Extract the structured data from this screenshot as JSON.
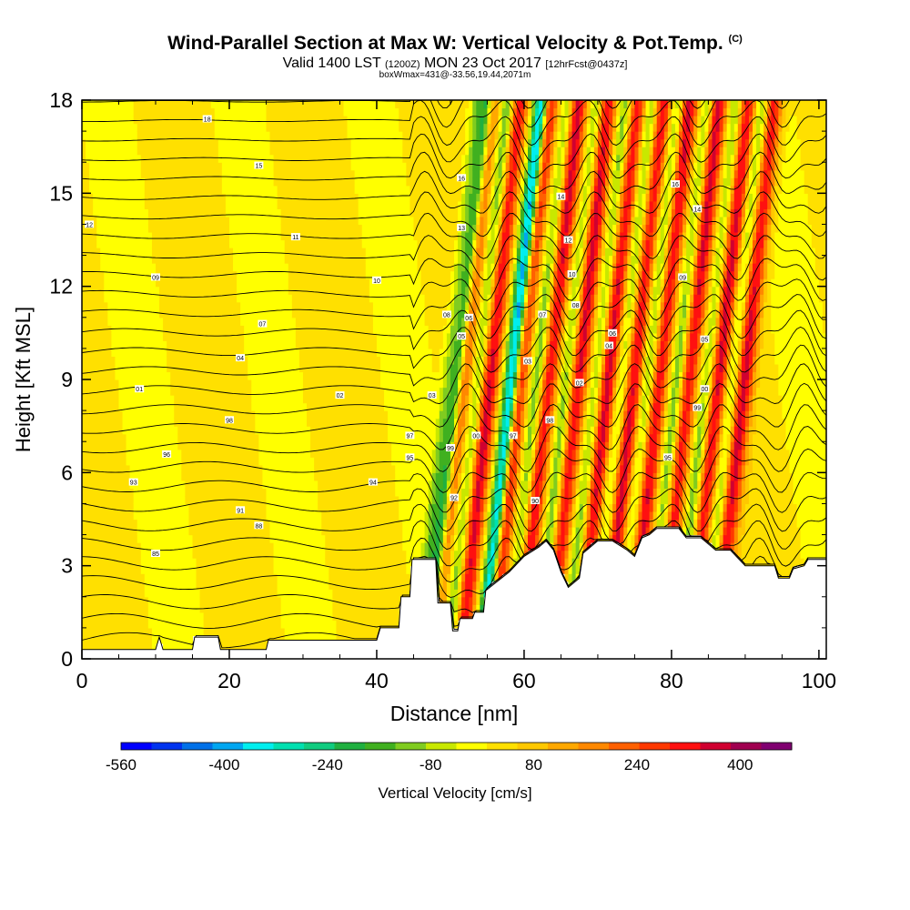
{
  "chart_data": {
    "type": "heatmap",
    "title": "Wind-Parallel Section at Max W: Vertical Velocity & Pot.Temp.",
    "title_mark": "(C)",
    "subtitle_main_a": "Valid 1400 LST",
    "subtitle_small_a": "(1200Z)",
    "subtitle_main_b": "MON 23 Oct 2017",
    "subtitle_small_b": "[12hrFcst@0437z]",
    "box_note": "boxWmax=431@-33.56,19.44,2071m",
    "xlabel": "Distance [nm]",
    "ylabel": "Height [Kft MSL]",
    "xlim": [
      0,
      101
    ],
    "ylim": [
      0,
      18
    ],
    "x_ticks": [
      0,
      20,
      40,
      60,
      80,
      100
    ],
    "y_ticks": [
      0,
      3,
      6,
      9,
      12,
      15,
      18
    ],
    "colorbar": {
      "label": "Vertical Velocity [cm/s]",
      "tick_labels": [
        "-560",
        "-400",
        "-240",
        "-80",
        "80",
        "240",
        "400"
      ],
      "tick_values": [
        -560,
        -400,
        -240,
        -80,
        80,
        240,
        400
      ],
      "range": [
        -560,
        480
      ],
      "colors": [
        "#0000ff",
        "#0033ee",
        "#0070e8",
        "#00a6f0",
        "#00eeee",
        "#00e0b0",
        "#10cc80",
        "#20b040",
        "#40b020",
        "#80cc20",
        "#c8e800",
        "#ffff00",
        "#ffe000",
        "#ffc800",
        "#ffa800",
        "#ff8800",
        "#ff6000",
        "#ff3800",
        "#ff1010",
        "#d00030",
        "#a00050",
        "#800070"
      ]
    },
    "updraft_bands_nm": [
      50,
      54,
      58,
      62,
      66,
      70,
      73.5,
      77,
      81,
      85,
      88.5
    ],
    "downdraft_bands_nm": [
      51,
      58.5
    ],
    "terrain_profile_kft": [
      [
        0,
        0.3
      ],
      [
        10,
        0.3
      ],
      [
        10.5,
        0.7
      ],
      [
        11,
        0.3
      ],
      [
        15,
        0.3
      ],
      [
        15.3,
        0.7
      ],
      [
        18.5,
        0.7
      ],
      [
        18.8,
        0.3
      ],
      [
        25,
        0.3
      ],
      [
        25.3,
        0.6
      ],
      [
        40,
        0.6
      ],
      [
        40.5,
        1.0
      ],
      [
        43,
        1.0
      ],
      [
        43.3,
        2.0
      ],
      [
        44.5,
        2.0
      ],
      [
        44.8,
        3.2
      ],
      [
        48,
        3.2
      ],
      [
        48.3,
        1.8
      ],
      [
        50,
        1.8
      ],
      [
        50.3,
        0.9
      ],
      [
        51,
        0.9
      ],
      [
        51.3,
        1.3
      ],
      [
        53,
        1.3
      ],
      [
        53.3,
        1.5
      ],
      [
        54.5,
        1.5
      ],
      [
        54.8,
        2.2
      ],
      [
        58,
        2.8
      ],
      [
        60,
        3.3
      ],
      [
        62,
        3.6
      ],
      [
        63,
        3.8
      ],
      [
        64,
        3.5
      ],
      [
        65,
        2.8
      ],
      [
        66,
        2.3
      ],
      [
        67.5,
        2.6
      ],
      [
        68,
        3.4
      ],
      [
        70,
        3.8
      ],
      [
        72,
        3.8
      ],
      [
        74,
        3.5
      ],
      [
        75,
        3.3
      ],
      [
        76,
        3.9
      ],
      [
        77,
        4.0
      ],
      [
        78,
        4.2
      ],
      [
        81,
        4.2
      ],
      [
        82,
        3.9
      ],
      [
        84,
        3.9
      ],
      [
        86,
        3.5
      ],
      [
        88,
        3.5
      ],
      [
        90,
        3.0
      ],
      [
        94,
        3.0
      ],
      [
        94.5,
        2.6
      ],
      [
        96,
        2.6
      ],
      [
        96.5,
        2.9
      ],
      [
        98,
        3.0
      ],
      [
        98.5,
        3.2
      ],
      [
        101,
        3.2
      ]
    ],
    "contour_labels": [
      {
        "x": 17,
        "y": 17.4,
        "text": "18"
      },
      {
        "x": 24,
        "y": 15.9,
        "text": "15"
      },
      {
        "x": 1,
        "y": 14.0,
        "text": "12"
      },
      {
        "x": 29,
        "y": 13.6,
        "text": "11"
      },
      {
        "x": 10,
        "y": 12.3,
        "text": "09"
      },
      {
        "x": 24.5,
        "y": 10.8,
        "text": "07"
      },
      {
        "x": 21.5,
        "y": 9.7,
        "text": "04"
      },
      {
        "x": 7.8,
        "y": 8.7,
        "text": "01"
      },
      {
        "x": 20,
        "y": 7.7,
        "text": "98"
      },
      {
        "x": 11.5,
        "y": 6.6,
        "text": "96"
      },
      {
        "x": 7,
        "y": 5.7,
        "text": "93"
      },
      {
        "x": 21.5,
        "y": 4.8,
        "text": "91"
      },
      {
        "x": 24,
        "y": 4.3,
        "text": "88"
      },
      {
        "x": 10,
        "y": 3.4,
        "text": "85"
      },
      {
        "x": 35,
        "y": 8.5,
        "text": "02"
      },
      {
        "x": 40,
        "y": 12.2,
        "text": "10"
      },
      {
        "x": 44.5,
        "y": 7.2,
        "text": "97"
      },
      {
        "x": 44.5,
        "y": 6.5,
        "text": "95"
      },
      {
        "x": 39.5,
        "y": 5.7,
        "text": "94"
      },
      {
        "x": 47.5,
        "y": 8.5,
        "text": "03"
      },
      {
        "x": 49.5,
        "y": 11.1,
        "text": "08"
      },
      {
        "x": 50,
        "y": 6.8,
        "text": "99"
      },
      {
        "x": 50.5,
        "y": 5.2,
        "text": "92"
      },
      {
        "x": 51.5,
        "y": 15.5,
        "text": "16"
      },
      {
        "x": 51.5,
        "y": 13.9,
        "text": "13"
      },
      {
        "x": 52.5,
        "y": 11.0,
        "text": "06"
      },
      {
        "x": 51.5,
        "y": 10.4,
        "text": "05"
      },
      {
        "x": 53.5,
        "y": 7.2,
        "text": "00"
      },
      {
        "x": 58.5,
        "y": 7.2,
        "text": "97"
      },
      {
        "x": 60.5,
        "y": 9.6,
        "text": "03"
      },
      {
        "x": 61.5,
        "y": 5.1,
        "text": "90"
      },
      {
        "x": 62.5,
        "y": 11.1,
        "text": "07"
      },
      {
        "x": 63.5,
        "y": 7.7,
        "text": "98"
      },
      {
        "x": 65,
        "y": 14.9,
        "text": "14"
      },
      {
        "x": 66,
        "y": 13.5,
        "text": "12"
      },
      {
        "x": 66.5,
        "y": 12.4,
        "text": "10"
      },
      {
        "x": 67,
        "y": 11.4,
        "text": "08"
      },
      {
        "x": 67.5,
        "y": 8.9,
        "text": "02"
      },
      {
        "x": 71.5,
        "y": 10.1,
        "text": "04"
      },
      {
        "x": 72,
        "y": 10.5,
        "text": "06"
      },
      {
        "x": 79.5,
        "y": 6.5,
        "text": "95"
      },
      {
        "x": 80.5,
        "y": 15.3,
        "text": "16"
      },
      {
        "x": 81.5,
        "y": 12.3,
        "text": "09"
      },
      {
        "x": 83.5,
        "y": 14.5,
        "text": "14"
      },
      {
        "x": 84.5,
        "y": 10.3,
        "text": "05"
      },
      {
        "x": 84.5,
        "y": 8.7,
        "text": "00"
      },
      {
        "x": 83.5,
        "y": 8.1,
        "text": "99"
      }
    ]
  }
}
